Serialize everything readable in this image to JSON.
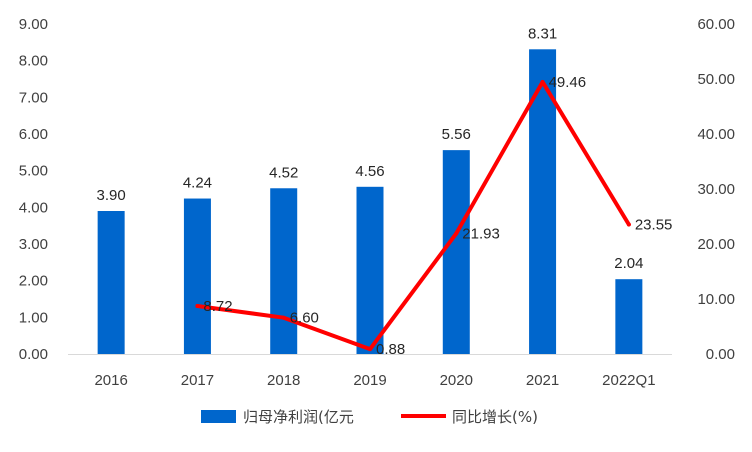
{
  "chart_data": {
    "type": "bar",
    "categories": [
      "2016",
      "2017",
      "2018",
      "2019",
      "2020",
      "2021",
      "2022Q1"
    ],
    "series": [
      {
        "name": "归母净利润(亿元",
        "type": "bar",
        "axis": "left",
        "values": [
          3.9,
          4.24,
          4.52,
          4.56,
          5.56,
          8.31,
          2.04
        ],
        "labels": [
          "3.90",
          "4.24",
          "4.52",
          "4.56",
          "5.56",
          "8.31",
          "2.04"
        ],
        "color": "#0066CC"
      },
      {
        "name": "同比增长(%)",
        "type": "line",
        "axis": "right",
        "values": [
          null,
          8.72,
          6.6,
          0.88,
          21.93,
          49.46,
          23.55
        ],
        "labels": [
          "",
          "8.72",
          "6.60",
          "0.88",
          "21.93",
          "49.46",
          "23.55"
        ],
        "color": "#FF0000"
      }
    ],
    "left_axis": {
      "ylim": [
        0,
        9
      ],
      "ticks": [
        "0.00",
        "1.00",
        "2.00",
        "3.00",
        "4.00",
        "5.00",
        "6.00",
        "7.00",
        "8.00",
        "9.00"
      ]
    },
    "right_axis": {
      "ylim": [
        0,
        60
      ],
      "ticks": [
        "0.00",
        "10.00",
        "20.00",
        "30.00",
        "40.00",
        "50.00",
        "60.00"
      ]
    },
    "grid": false,
    "legend_position": "bottom"
  }
}
